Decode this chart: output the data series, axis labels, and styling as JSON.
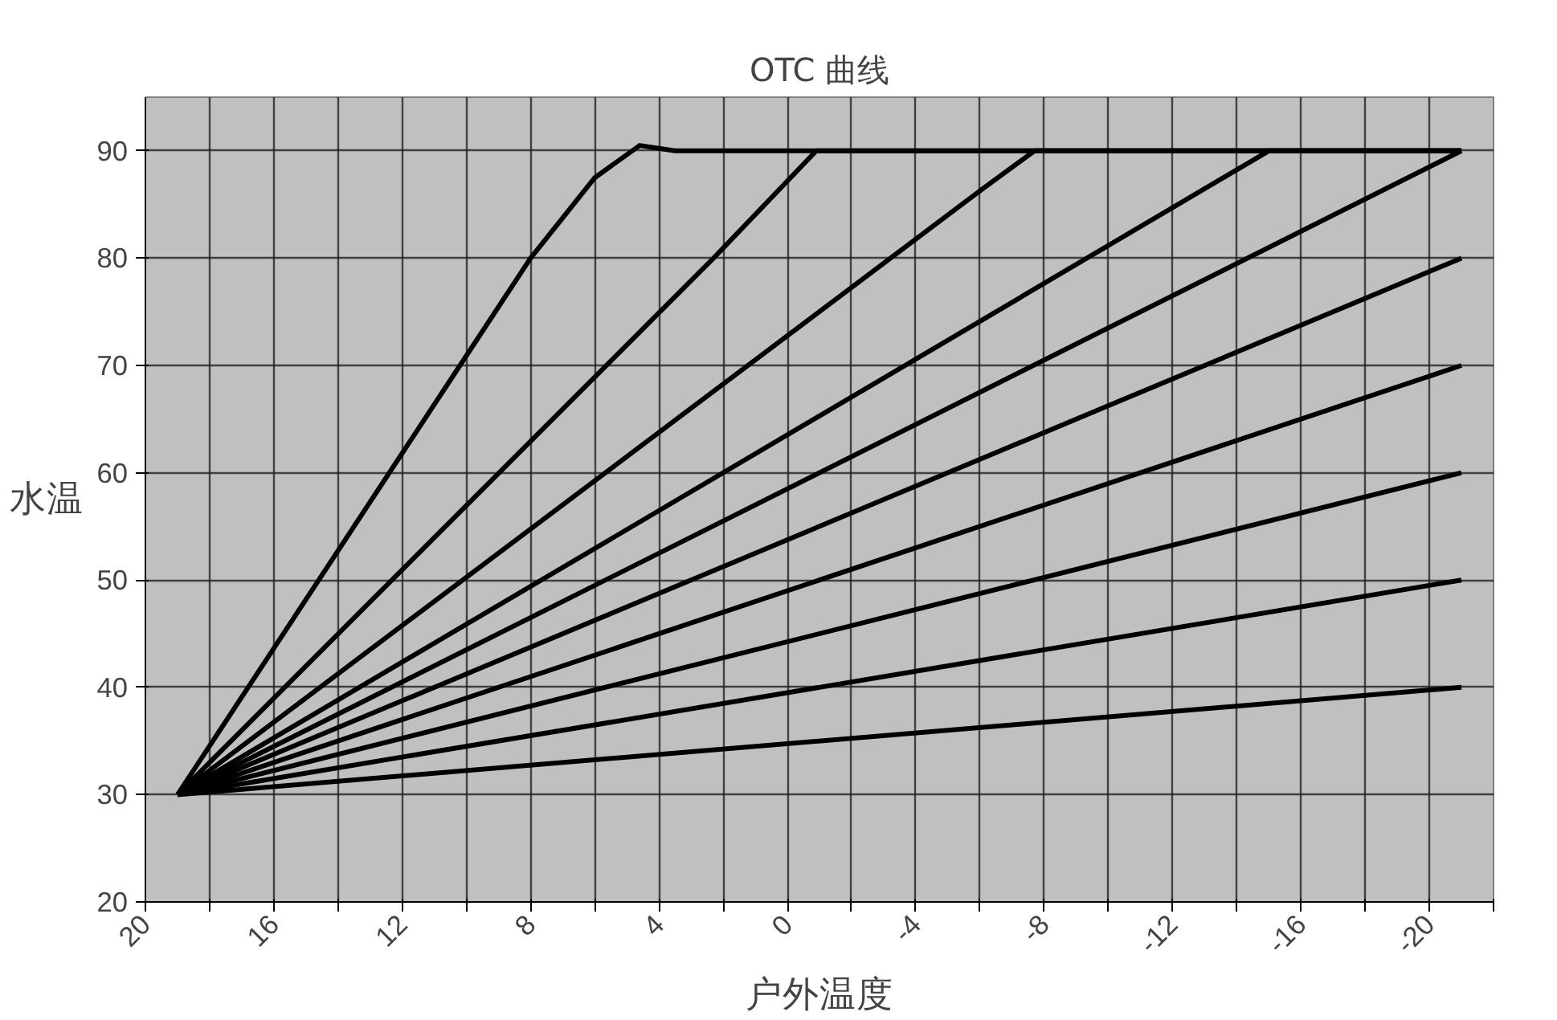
{
  "chart_data": {
    "type": "line",
    "title": "OTC 曲线",
    "xlabel": "户外温度",
    "ylabel": "水温",
    "xlim": [
      20,
      -22
    ],
    "ylim": [
      20,
      95
    ],
    "xticks": [
      20,
      {
        "value": 18,
        "label": null
      },
      16,
      {
        "value": 14,
        "label": null
      },
      12,
      {
        "value": 10,
        "label": null
      },
      8,
      {
        "value": 6,
        "label": null
      },
      4,
      {
        "value": 2,
        "label": null
      },
      0,
      {
        "value": -2,
        "label": null
      },
      -4,
      {
        "value": -6,
        "label": null
      },
      -8,
      {
        "value": -10,
        "label": null
      },
      -12,
      {
        "value": -14,
        "label": null
      },
      -16,
      {
        "value": -18,
        "label": null
      },
      -20,
      {
        "value": -22,
        "label": null
      }
    ],
    "yticks": [
      20,
      30,
      40,
      50,
      60,
      70,
      80,
      90
    ],
    "grid": true,
    "marker": "none",
    "line_style": "solid",
    "series": [
      {
        "color": "#000000",
        "x": [
          19,
          10.2,
          8,
          6,
          4.6,
          3.5,
          -21
        ],
        "values": [
          30,
          70,
          80,
          87.5,
          90.5,
          90,
          90
        ]
      },
      {
        "color": "#000000",
        "x": [
          19,
          2.3,
          -0.9,
          -21
        ],
        "values": [
          30,
          80,
          90,
          90
        ]
      },
      {
        "color": "#000000",
        "x": [
          19,
          -6.1,
          -7.7,
          -21
        ],
        "values": [
          30,
          86.5,
          90,
          90
        ]
      },
      {
        "color": "#000000",
        "x": [
          19,
          -15,
          -21
        ],
        "values": [
          30,
          90,
          90
        ]
      },
      {
        "color": "#000000",
        "x": [
          19,
          -21
        ],
        "values": [
          30,
          90
        ]
      },
      {
        "color": "#000000",
        "x": [
          19,
          -21
        ],
        "values": [
          30,
          80
        ]
      },
      {
        "color": "#000000",
        "x": [
          19,
          -21
        ],
        "values": [
          30,
          70
        ]
      },
      {
        "color": "#000000",
        "x": [
          19,
          -21
        ],
        "values": [
          30,
          60
        ]
      },
      {
        "color": "#000000",
        "x": [
          19,
          -21
        ],
        "values": [
          30,
          50
        ]
      },
      {
        "color": "#000000",
        "x": [
          19,
          -21
        ],
        "values": [
          30,
          40
        ]
      }
    ]
  }
}
